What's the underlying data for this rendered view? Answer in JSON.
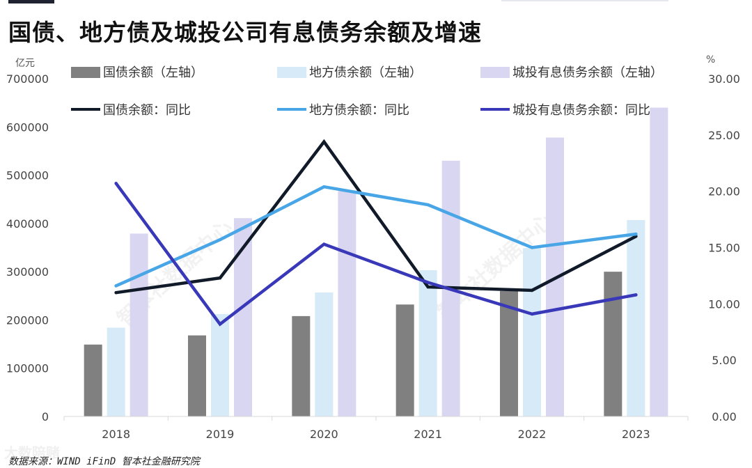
{
  "title": "国债、地方债及城投公司有息债务余额及增速",
  "source": "数据来源：WIND iFinD 智本社金融研究院",
  "watermarks": [
    "智本社数据中心",
    "智本社数据中心"
  ],
  "corner_logo": "大数陪赌",
  "colors": {
    "gov_bond_bar": "#808080",
    "local_bond_bar": "#d6eaf8",
    "chengtou_bar": "#d9d6f2",
    "gov_bond_line": "#101a28",
    "local_bond_line": "#48a6e6",
    "chengtou_line": "#3838b8"
  },
  "chart_data": {
    "type": "bar",
    "categories": [
      "2018",
      "2019",
      "2020",
      "2021",
      "2022",
      "2023"
    ],
    "left_axis": {
      "unit": "亿元",
      "ylim": [
        0,
        700000
      ],
      "ticks": [
        "0",
        "100000",
        "200000",
        "300000",
        "400000",
        "500000",
        "600000",
        "700000"
      ]
    },
    "right_axis": {
      "unit": "%",
      "ylim": [
        0,
        30
      ],
      "ticks": [
        "0.00",
        "5.00",
        "10.00",
        "15.00",
        "20.00",
        "25.00",
        "30.00"
      ]
    },
    "bar_series": [
      {
        "name": "国债余额（左轴）",
        "values": [
          149000,
          168000,
          208000,
          232000,
          260000,
          300000
        ]
      },
      {
        "name": "地方债余额（左轴）",
        "values": [
          184000,
          212000,
          257000,
          303000,
          349000,
          407000
        ]
      },
      {
        "name": "城投有息债务余额（左轴）",
        "values": [
          379000,
          411000,
          467000,
          530000,
          578000,
          640000
        ]
      }
    ],
    "line_series": [
      {
        "name": "国债余额：同比",
        "values": [
          11.0,
          12.3,
          24.4,
          11.5,
          11.2,
          16.0
        ]
      },
      {
        "name": "地方债余额：同比",
        "values": [
          11.6,
          15.7,
          20.4,
          18.8,
          15.0,
          16.2
        ]
      },
      {
        "name": "城投有息债务余额：同比",
        "values": [
          20.7,
          8.2,
          15.3,
          11.9,
          9.1,
          10.8
        ]
      }
    ],
    "grid": false,
    "legend_position": "top"
  }
}
